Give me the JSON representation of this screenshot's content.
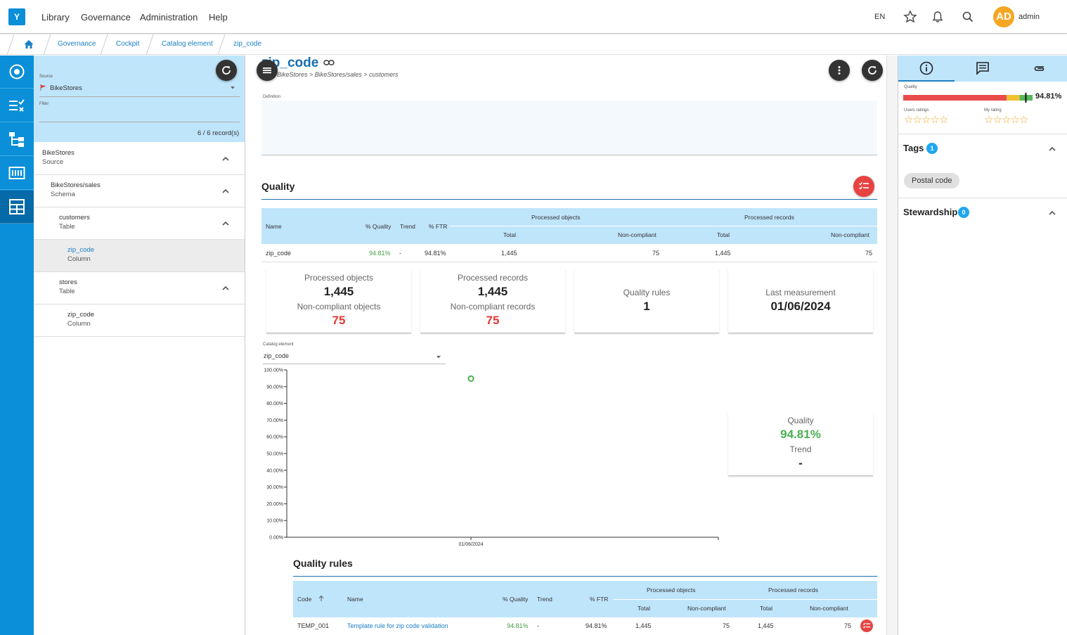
{
  "app": {
    "logo": "Y"
  },
  "topnav": {
    "items": [
      "Library",
      "Governance",
      "Administration",
      "Help"
    ],
    "lang": "EN",
    "avatar_initials": "AD",
    "username": "admin"
  },
  "breadcrumb": [
    "Governance",
    "Cockpit",
    "Catalog element",
    "zip_code"
  ],
  "tree": {
    "source_label": "Source",
    "source_value": "BikeStores",
    "filter_label": "Filter",
    "record_count": "6 / 6 record(s)",
    "rows": [
      {
        "name": "BikeStores",
        "type": "Source"
      },
      {
        "name": "BikeStores/sales",
        "type": "Schema"
      },
      {
        "name": "customers",
        "type": "Table"
      },
      {
        "name": "zip_code",
        "type": "Column"
      },
      {
        "name": "stores",
        "type": "Table"
      },
      {
        "name": "zip_code",
        "type": "Column"
      }
    ]
  },
  "element": {
    "title": "zip_code",
    "path": "BikeStores > BikeStores/sales > customers",
    "definition_label": "Definition"
  },
  "quality": {
    "title": "Quality",
    "table": {
      "headers": {
        "name": "Name",
        "quality": "% Quality",
        "trend": "Trend",
        "ftr": "% FTR",
        "processed_objects": "Processed objects",
        "processed_records": "Processed records",
        "total": "Total",
        "non_compliant": "Non-compliant"
      },
      "row": {
        "name": "zip_code",
        "quality": "94.81%",
        "trend": "-",
        "ftr": "94.81%",
        "obj_total": "1,445",
        "obj_nc": "75",
        "rec_total": "1,445",
        "rec_nc": "75"
      }
    },
    "cards": {
      "processed_objects_label": "Processed objects",
      "processed_objects": "1,445",
      "nc_objects_label": "Non-compliant objects",
      "nc_objects": "75",
      "processed_records_label": "Processed records",
      "processed_records": "1,445",
      "nc_records_label": "Non-compliant records",
      "nc_records": "75",
      "rules_label": "Quality rules",
      "rules": "1",
      "last_label": "Last measurement",
      "last": "01/06/2024"
    },
    "chart_select_label": "Catalog element",
    "chart_select_value": "zip_code",
    "side_card": {
      "quality_label": "Quality",
      "quality": "94.81%",
      "trend_label": "Trend",
      "trend": "-"
    }
  },
  "chart_data": {
    "type": "scatter",
    "x": [
      "01/06/2024"
    ],
    "series": [
      {
        "values": [
          94.81
        ]
      }
    ],
    "y_ticks": [
      "0.00%",
      "10.00%",
      "20.00%",
      "30.00%",
      "40.00%",
      "50.00%",
      "60.00%",
      "70.00%",
      "80.00%",
      "90.00%",
      "100.00%"
    ],
    "ylim": [
      0,
      100
    ],
    "color": "#4caf50"
  },
  "rules": {
    "title": "Quality rules",
    "headers": {
      "code": "Code",
      "name": "Name",
      "quality": "% Quality",
      "trend": "Trend",
      "ftr": "% FTR",
      "processed_objects": "Processed objects",
      "processed_records": "Processed records",
      "total": "Total",
      "non_compliant": "Non-compliant"
    },
    "rows": [
      {
        "code": "TEMP_001",
        "name": "Template rule for zip code validation",
        "quality": "94.81%",
        "trend": "-",
        "ftr": "94.81%",
        "obj_total": "1,445",
        "obj_nc": "75",
        "rec_total": "1,445",
        "rec_nc": "75"
      }
    ]
  },
  "right": {
    "quality_label": "Quality",
    "quality_value": "94.81%",
    "quality_fraction": 0.9481,
    "users_ratings_label": "Users ratings",
    "my_rating_label": "My rating",
    "stars": "☆☆☆☆☆",
    "tags_title": "Tags",
    "tags_count": "1",
    "tags": [
      "Postal code"
    ],
    "stewardship_title": "Stewardship",
    "stewardship_count": "0"
  },
  "colors": {
    "accent": "#0a8fd8",
    "header_bg": "#bfe5fb",
    "danger": "#e53935",
    "success": "#4caf50"
  }
}
